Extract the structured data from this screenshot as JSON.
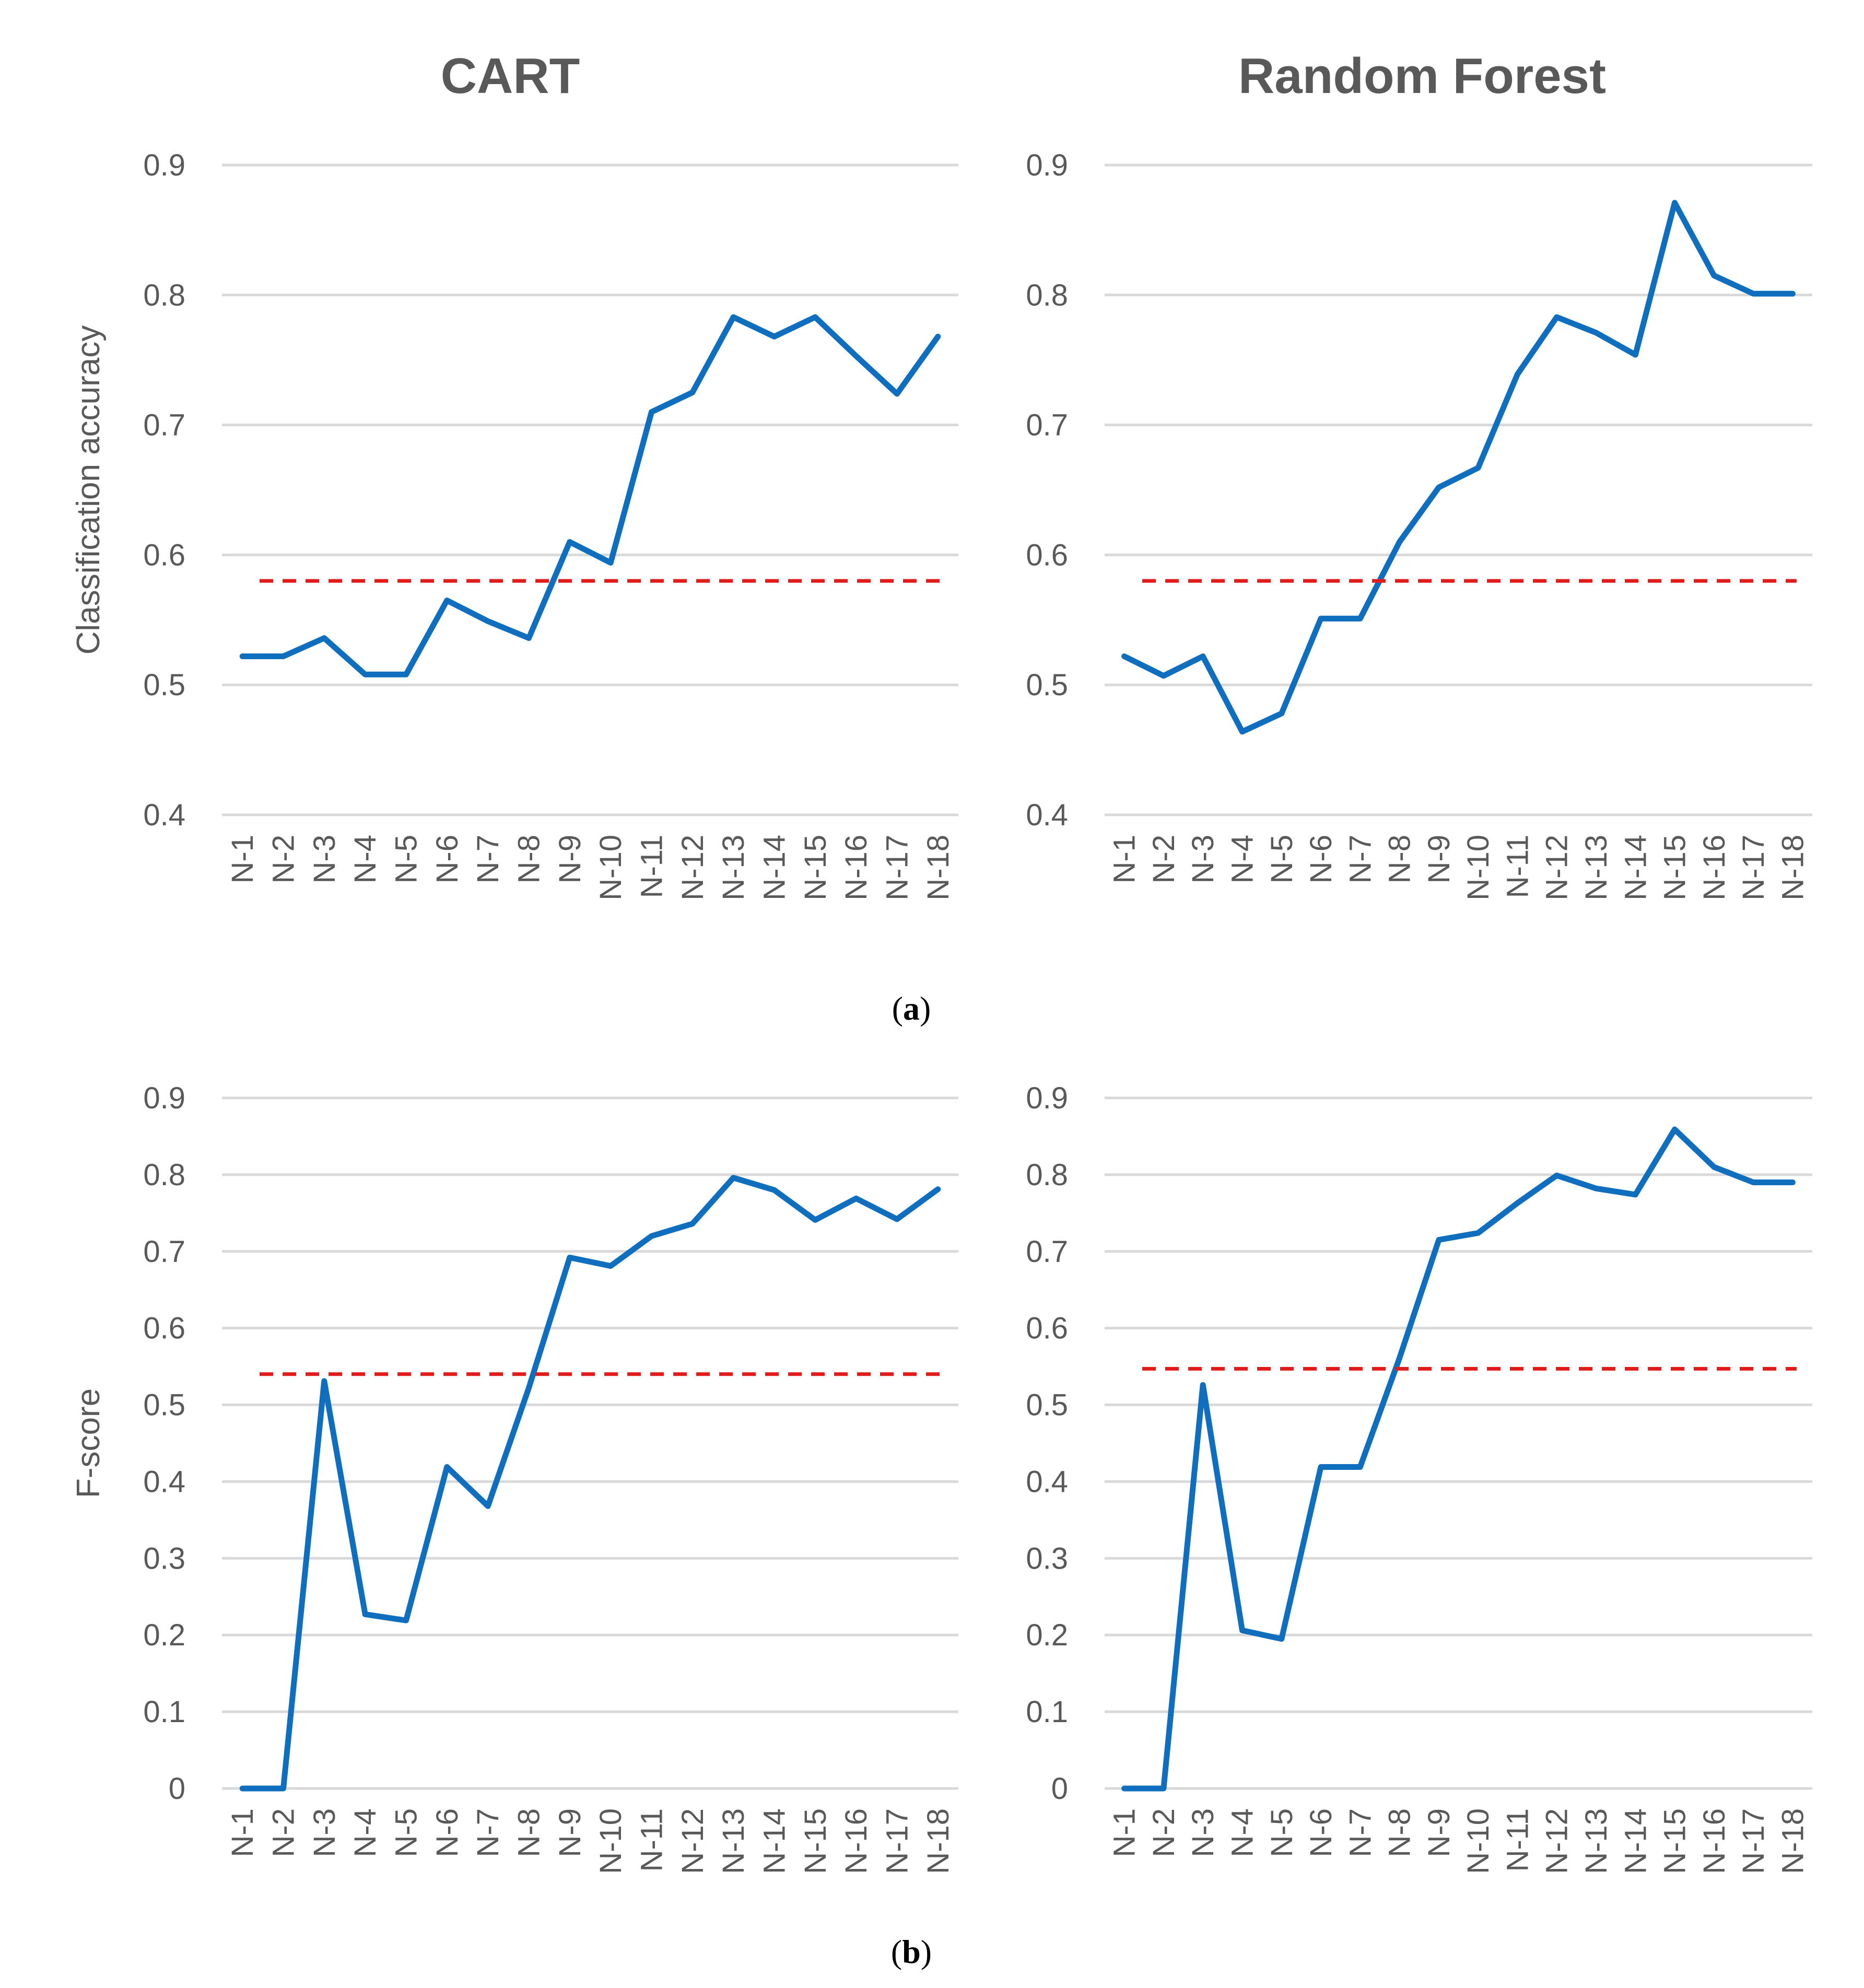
{
  "figure": {
    "column_titles": [
      "CART",
      "Random Forest"
    ],
    "captions": [
      "a",
      "b"
    ]
  },
  "colors": {
    "series": "#0f6fbe",
    "baseline": "#e21b1b",
    "grid": "#d9d9d9",
    "text": "#595959"
  },
  "chart_data": [
    {
      "id": "cart-accuracy",
      "type": "line",
      "title": "CART",
      "ylabel": "Classification accuracy",
      "xlabel": "",
      "categories": [
        "N-1",
        "N-2",
        "N-3",
        "N-4",
        "N-5",
        "N-6",
        "N-7",
        "N-8",
        "N-9",
        "N-10",
        "N-11",
        "N-12",
        "N-13",
        "N-14",
        "N-15",
        "N-16",
        "N-17",
        "N-18"
      ],
      "ylim": [
        0.4,
        0.9
      ],
      "yticks": [
        0.4,
        0.5,
        0.6,
        0.7,
        0.8,
        0.9
      ],
      "ytick_labels": [
        "0.4",
        "0.5",
        "0.6",
        "0.7",
        "0.8",
        "0.9"
      ],
      "grid": true,
      "series": [
        {
          "name": "model",
          "style": "solid",
          "values": [
            0.522,
            0.522,
            0.536,
            0.508,
            0.508,
            0.565,
            0.549,
            0.536,
            0.61,
            0.594,
            0.71,
            0.725,
            0.783,
            0.768,
            0.783,
            0.753,
            0.724,
            0.768
          ]
        },
        {
          "name": "baseline",
          "style": "dashed",
          "values": [
            0.58,
            0.58,
            0.58,
            0.58,
            0.58,
            0.58,
            0.58,
            0.58,
            0.58,
            0.58,
            0.58,
            0.58,
            0.58,
            0.58,
            0.58,
            0.58,
            0.58,
            0.58
          ]
        }
      ]
    },
    {
      "id": "rf-accuracy",
      "type": "line",
      "title": "Random Forest",
      "ylabel": "",
      "xlabel": "",
      "categories": [
        "N-1",
        "N-2",
        "N-3",
        "N-4",
        "N-5",
        "N-6",
        "N-7",
        "N-8",
        "N-9",
        "N-10",
        "N-11",
        "N-12",
        "N-13",
        "N-14",
        "N-15",
        "N-16",
        "N-17",
        "N-18"
      ],
      "ylim": [
        0.4,
        0.9
      ],
      "yticks": [
        0.4,
        0.5,
        0.6,
        0.7,
        0.8,
        0.9
      ],
      "ytick_labels": [
        "0.4",
        "0.5",
        "0.6",
        "0.7",
        "0.8",
        "0.9"
      ],
      "grid": true,
      "series": [
        {
          "name": "model",
          "style": "solid",
          "values": [
            0.522,
            0.507,
            0.522,
            0.464,
            0.478,
            0.551,
            0.551,
            0.61,
            0.652,
            0.667,
            0.739,
            0.783,
            0.771,
            0.754,
            0.871,
            0.815,
            0.801,
            0.801
          ]
        },
        {
          "name": "baseline",
          "style": "dashed",
          "values": [
            0.58,
            0.58,
            0.58,
            0.58,
            0.58,
            0.58,
            0.58,
            0.58,
            0.58,
            0.58,
            0.58,
            0.58,
            0.58,
            0.58,
            0.58,
            0.58,
            0.58,
            0.58
          ]
        }
      ]
    },
    {
      "id": "cart-fscore",
      "type": "line",
      "title": "",
      "ylabel": "F-score",
      "xlabel": "",
      "categories": [
        "N-1",
        "N-2",
        "N-3",
        "N-4",
        "N-5",
        "N-6",
        "N-7",
        "N-8",
        "N-9",
        "N-10",
        "N-11",
        "N-12",
        "N-13",
        "N-14",
        "N-15",
        "N-16",
        "N-17",
        "N-18"
      ],
      "ylim": [
        0,
        0.9
      ],
      "yticks": [
        0,
        0.1,
        0.2,
        0.3,
        0.4,
        0.5,
        0.6,
        0.7,
        0.8,
        0.9
      ],
      "ytick_labels": [
        "0",
        "0.1",
        "0.2",
        "0.3",
        "0.4",
        "0.5",
        "0.6",
        "0.7",
        "0.8",
        "0.9"
      ],
      "grid": true,
      "series": [
        {
          "name": "model",
          "style": "solid",
          "values": [
            0,
            0,
            0.531,
            0.227,
            0.219,
            0.419,
            0.368,
            0.522,
            0.692,
            0.681,
            0.72,
            0.736,
            0.796,
            0.78,
            0.741,
            0.769,
            0.742,
            0.781
          ]
        },
        {
          "name": "baseline",
          "style": "dashed",
          "values": [
            0.54,
            0.54,
            0.54,
            0.54,
            0.54,
            0.54,
            0.54,
            0.54,
            0.54,
            0.54,
            0.54,
            0.54,
            0.54,
            0.54,
            0.54,
            0.54,
            0.54,
            0.54
          ]
        }
      ]
    },
    {
      "id": "rf-fscore",
      "type": "line",
      "title": "",
      "ylabel": "",
      "xlabel": "",
      "categories": [
        "N-1",
        "N-2",
        "N-3",
        "N-4",
        "N-5",
        "N-6",
        "N-7",
        "N-8",
        "N-9",
        "N-10",
        "N-11",
        "N-12",
        "N-13",
        "N-14",
        "N-15",
        "N-16",
        "N-17",
        "N-18"
      ],
      "ylim": [
        0,
        0.9
      ],
      "yticks": [
        0,
        0.1,
        0.2,
        0.3,
        0.4,
        0.5,
        0.6,
        0.7,
        0.8,
        0.9
      ],
      "ytick_labels": [
        "0",
        "0.1",
        "0.2",
        "0.3",
        "0.4",
        "0.5",
        "0.6",
        "0.7",
        "0.8",
        "0.9"
      ],
      "grid": true,
      "series": [
        {
          "name": "model",
          "style": "solid",
          "values": [
            0,
            0,
            0.526,
            0.206,
            0.195,
            0.419,
            0.419,
            0.561,
            0.715,
            0.724,
            0.763,
            0.799,
            0.782,
            0.774,
            0.859,
            0.81,
            0.79,
            0.79
          ]
        },
        {
          "name": "baseline",
          "style": "dashed",
          "values": [
            0.547,
            0.547,
            0.547,
            0.547,
            0.547,
            0.547,
            0.547,
            0.547,
            0.547,
            0.547,
            0.547,
            0.547,
            0.547,
            0.547,
            0.547,
            0.547,
            0.547,
            0.547
          ]
        }
      ]
    }
  ]
}
